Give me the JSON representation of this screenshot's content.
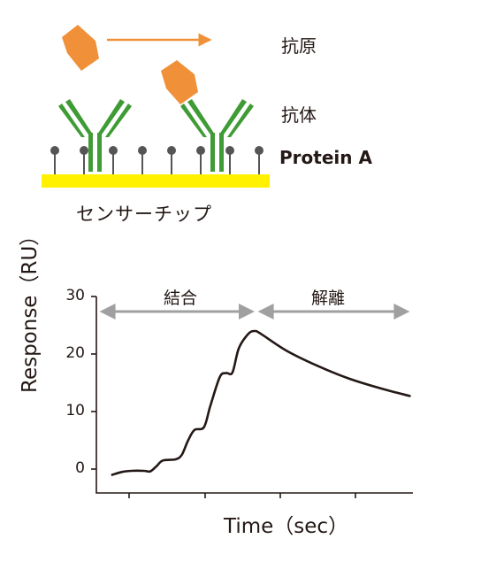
{
  "diagram": {
    "labels": {
      "antigen": "抗原",
      "antibody": "抗体",
      "protein_a": "Protein A",
      "sensor_chip": "センサーチップ"
    },
    "colors": {
      "antigen": "#f0913a",
      "antibody": "#3f9b35",
      "chip": "#fff100",
      "probe": "#555555",
      "arrow": "#a0a0a0"
    }
  },
  "chart_data": {
    "type": "line",
    "xlabel": "Time（sec）",
    "ylabel": "Response（RU）",
    "yticks": [
      "0",
      "10",
      "20",
      "30"
    ],
    "ylim": [
      -3,
      31
    ],
    "xlim": [
      0,
      100
    ],
    "phases": [
      {
        "name": "結合",
        "x_start": 1,
        "x_end": 50
      },
      {
        "name": "解離",
        "x_start": 51,
        "x_end": 99
      }
    ],
    "series": [
      {
        "values": [
          [
            5,
            0
          ],
          [
            8,
            0.5
          ],
          [
            11,
            0.7
          ],
          [
            15,
            0.7
          ],
          [
            17,
            0.6
          ],
          [
            19,
            1.5
          ],
          [
            21,
            2.5
          ],
          [
            25,
            2.7
          ],
          [
            27,
            3.5
          ],
          [
            29,
            6
          ],
          [
            31,
            7.8
          ],
          [
            34,
            8.3
          ],
          [
            36,
            12
          ],
          [
            39,
            17
          ],
          [
            41,
            17.7
          ],
          [
            43,
            17.8
          ],
          [
            45,
            22
          ],
          [
            48,
            24.5
          ],
          [
            50,
            25
          ],
          [
            52,
            24.5
          ],
          [
            60,
            21.6
          ],
          [
            70,
            18.9
          ],
          [
            80,
            16.7
          ],
          [
            90,
            15
          ],
          [
            99,
            13.7
          ]
        ]
      }
    ]
  }
}
